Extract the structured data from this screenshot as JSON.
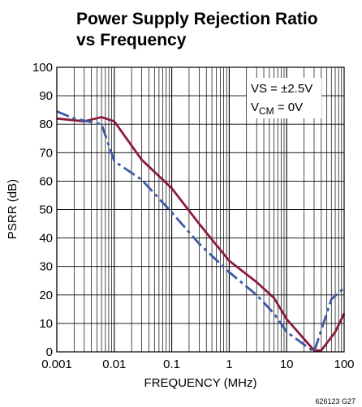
{
  "chart_data": {
    "type": "line",
    "title_lines": [
      "Power Supply Rejection Ratio",
      "vs Frequency"
    ],
    "xlabel": "FREQUENCY (MHz)",
    "ylabel": "PSRR (dB)",
    "x_scale": "log",
    "xlim": [
      0.001,
      100
    ],
    "ylim": [
      0,
      100
    ],
    "x_tick_values": [
      0.001,
      0.01,
      0.1,
      1,
      10,
      100
    ],
    "x_tick_labels": [
      "0.001",
      "0.01",
      "0.1",
      "1",
      "10",
      "100"
    ],
    "y_tick_values": [
      0,
      10,
      20,
      30,
      40,
      50,
      60,
      70,
      80,
      90,
      100
    ],
    "y_tick_labels": [
      "0",
      "10",
      "20",
      "30",
      "40",
      "50",
      "60",
      "70",
      "80",
      "90",
      "100"
    ],
    "grid": true,
    "annotation": {
      "line1": "VS = ±2.5V",
      "line2_main": "V",
      "line2_sub": "CM",
      "line2_rest": " = 0V"
    },
    "series": [
      {
        "style": "solid",
        "color": "#8b1a3a",
        "x": [
          0.001,
          0.003,
          0.006,
          0.01,
          0.03,
          0.1,
          0.3,
          1,
          3,
          6,
          10,
          30,
          40,
          70,
          100
        ],
        "y": [
          82,
          81,
          82.5,
          81,
          67.5,
          57.5,
          45,
          32,
          24.5,
          19,
          11.5,
          0.5,
          0.5,
          7,
          13.5
        ]
      },
      {
        "style": "dashed",
        "color": "#3b5aa6",
        "x": [
          0.001,
          0.002,
          0.006,
          0.01,
          0.03,
          0.1,
          0.3,
          1,
          3,
          6,
          10,
          30,
          60,
          100
        ],
        "y": [
          84.5,
          82,
          80,
          67,
          60.5,
          49,
          38,
          28,
          20,
          13.5,
          7,
          0,
          18.5,
          22.5
        ]
      }
    ]
  },
  "figure_code": "626123 G27"
}
